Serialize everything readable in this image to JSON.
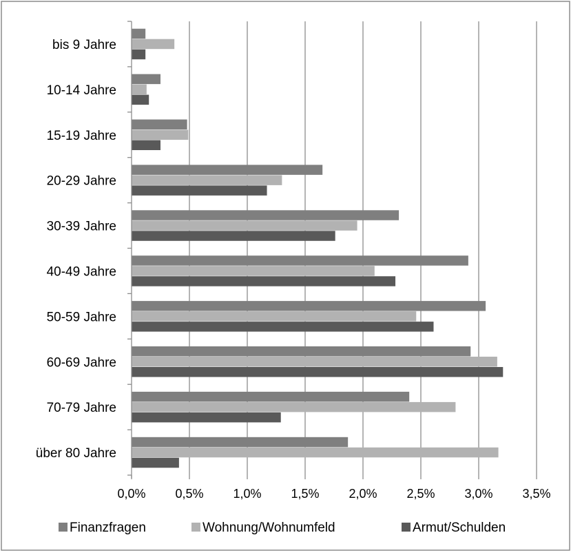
{
  "chart_data": {
    "type": "bar",
    "orientation": "horizontal",
    "categories": [
      "bis 9 Jahre",
      "10-14 Jahre",
      "15-19 Jahre",
      "20-29 Jahre",
      "30-39 Jahre",
      "40-49 Jahre",
      "50-59 Jahre",
      "60-69 Jahre",
      "70-79 Jahre",
      "über 80 Jahre"
    ],
    "series": [
      {
        "name": "Finanzfragen",
        "color": "#7f7f7f",
        "values": [
          0.12,
          0.25,
          0.48,
          1.65,
          2.31,
          2.91,
          3.06,
          2.93,
          2.4,
          1.87
        ]
      },
      {
        "name": "Wohnung/Wohnumfeld",
        "color": "#b2b2b2",
        "values": [
          0.37,
          0.13,
          0.49,
          1.3,
          1.95,
          2.1,
          2.46,
          3.16,
          2.8,
          3.17
        ]
      },
      {
        "name": "Armut/Schulden",
        "color": "#595959",
        "values": [
          0.12,
          0.15,
          0.25,
          1.17,
          1.76,
          2.28,
          2.61,
          3.21,
          1.29,
          0.41
        ]
      }
    ],
    "xlim": [
      0,
      3.5
    ],
    "xticks": [
      0,
      0.5,
      1.0,
      1.5,
      2.0,
      2.5,
      3.0,
      3.5
    ],
    "xtick_labels": [
      "0,0%",
      "0,5%",
      "1,0%",
      "1,5%",
      "2,0%",
      "2,5%",
      "3,0%",
      "3,5%"
    ],
    "xlabel": "",
    "ylabel": "",
    "title": "",
    "grid": "vertical",
    "legend": "bottom"
  }
}
